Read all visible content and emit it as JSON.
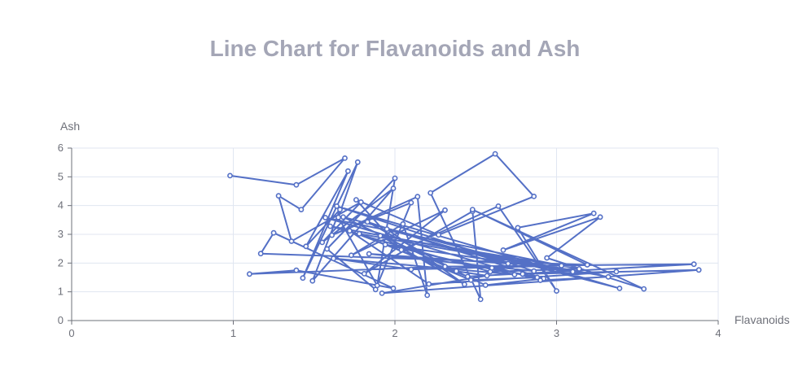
{
  "chart_data": {
    "type": "line",
    "title": "Line Chart for Flavanoids and Ash",
    "xlabel": "Flavanoids",
    "ylabel": "Ash",
    "xlim": [
      0,
      4
    ],
    "ylim": [
      0,
      6
    ],
    "x_ticks": [
      "0",
      "1",
      "2",
      "3",
      "4"
    ],
    "y_ticks": [
      "0",
      "1",
      "2",
      "3",
      "4",
      "5",
      "6"
    ],
    "grid": true,
    "color": "#5470c6",
    "series": [
      {
        "points": [
          [
            0.98,
            5.04
          ],
          [
            1.39,
            4.72
          ],
          [
            1.69,
            5.65
          ],
          [
            1.42,
            3.86
          ],
          [
            1.28,
            4.34
          ],
          [
            1.36,
            2.76
          ],
          [
            1.79,
            4.12
          ],
          [
            1.55,
            2.72
          ],
          [
            1.99,
            4.6
          ],
          [
            1.49,
            1.38
          ],
          [
            1.66,
            3.86
          ],
          [
            1.45,
            2.58
          ],
          [
            1.71,
            5.2
          ],
          [
            1.43,
            1.48
          ],
          [
            1.77,
            5.51
          ],
          [
            1.65,
            3.59
          ],
          [
            1.89,
            1.22
          ],
          [
            2.0,
            4.95
          ],
          [
            1.58,
            2.49
          ],
          [
            1.88,
            1.08
          ],
          [
            2.1,
            4.1
          ],
          [
            1.61,
            2.97
          ],
          [
            2.14,
            4.31
          ],
          [
            2.2,
            0.88
          ],
          [
            2.05,
            3.36
          ],
          [
            1.73,
            2.27
          ],
          [
            2.31,
            3.84
          ],
          [
            1.81,
            1.63
          ],
          [
            2.48,
            3.8
          ],
          [
            2.53,
            0.74
          ],
          [
            2.22,
            4.44
          ],
          [
            2.62,
            5.8
          ],
          [
            2.86,
            4.32
          ],
          [
            2.27,
            2.98
          ],
          [
            1.76,
            4.2
          ],
          [
            2.04,
            2.46
          ],
          [
            2.64,
            3.98
          ],
          [
            3.0,
            1.03
          ],
          [
            2.76,
            3.23
          ],
          [
            3.23,
            3.73
          ],
          [
            2.67,
            2.45
          ],
          [
            3.27,
            3.6
          ],
          [
            2.94,
            2.18
          ],
          [
            3.54,
            1.1
          ],
          [
            2.48,
            3.86
          ],
          [
            3.19,
            1.94
          ],
          [
            1.17,
            2.33
          ],
          [
            1.25,
            3.05
          ],
          [
            1.99,
            1.12
          ],
          [
            1.39,
            1.75
          ],
          [
            1.1,
            1.62
          ],
          [
            2.31,
            1.88
          ],
          [
            3.85,
            1.96
          ],
          [
            2.45,
            1.53
          ],
          [
            1.72,
            3.12
          ],
          [
            2.21,
            1.27
          ],
          [
            3.37,
            1.7
          ],
          [
            2.79,
            1.62
          ],
          [
            3.88,
            1.76
          ],
          [
            1.92,
            0.95
          ],
          [
            2.57,
            1.56
          ],
          [
            2.38,
            1.72
          ],
          [
            1.83,
            3.43
          ],
          [
            2.92,
            1.46
          ],
          [
            2.56,
            1.23
          ],
          [
            1.68,
            3.6
          ],
          [
            3.39,
            1.12
          ],
          [
            1.64,
            3.98
          ],
          [
            2.86,
            1.72
          ],
          [
            1.84,
            2.32
          ],
          [
            2.7,
            1.98
          ],
          [
            1.95,
            3.18
          ],
          [
            2.43,
            1.26
          ],
          [
            1.91,
            2.95
          ],
          [
            3.14,
            1.8
          ],
          [
            2.59,
            1.7
          ],
          [
            1.6,
            3.28
          ],
          [
            3.32,
            1.52
          ],
          [
            2.9,
            1.4
          ],
          [
            1.57,
            3.58
          ],
          [
            3.03,
            1.91
          ],
          [
            2.1,
            1.78
          ],
          [
            1.62,
            2.16
          ],
          [
            2.74,
            1.6
          ],
          [
            1.94,
            2.64
          ],
          [
            3.1,
            1.7
          ],
          [
            1.78,
            3.02
          ],
          [
            2.47,
            1.41
          ],
          [
            2.88,
            1.5
          ],
          [
            2.6,
            1.83
          ]
        ]
      }
    ]
  }
}
